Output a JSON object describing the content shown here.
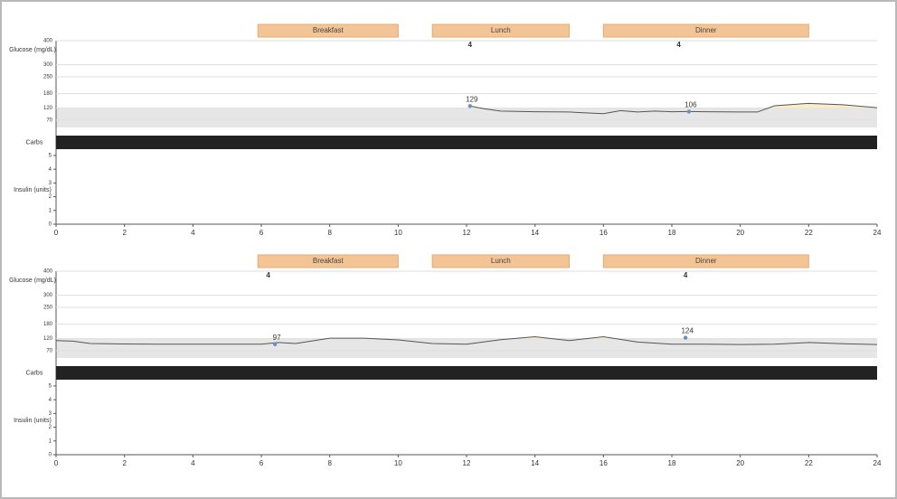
{
  "chart_data": [
    {
      "type": "line",
      "y_label": "Glucose (mg/dL)",
      "carbs_label": "Carbs",
      "insulin_label": "Insulin (units)",
      "x": [
        12.1,
        12.5,
        13,
        14,
        15,
        16,
        16.5,
        17,
        17.5,
        18,
        18.5,
        19,
        20,
        20.5,
        21,
        22,
        23,
        24
      ],
      "series": [
        {
          "name": "Glucose",
          "color": "#555555",
          "values": [
            129,
            118,
            108,
            105,
            104,
            97,
            110,
            104,
            108,
            105,
            106,
            105,
            104,
            104,
            130,
            140,
            134,
            122
          ]
        }
      ],
      "xlim": [
        0,
        24
      ],
      "xticks": [
        0,
        2,
        4,
        6,
        8,
        10,
        12,
        14,
        16,
        18,
        20,
        22,
        24
      ],
      "ylim": [
        40,
        400
      ],
      "yticks": [
        70,
        120,
        180,
        250,
        300,
        400
      ],
      "insulin_ylim": [
        0,
        5
      ],
      "insulin_yticks": [
        0,
        1,
        2,
        3,
        4,
        5
      ],
      "target_high": 120,
      "grid": true,
      "meals": [
        {
          "label": "Breakfast",
          "start": 5.9,
          "end": 10
        },
        {
          "label": "Lunch",
          "start": 11,
          "end": 15
        },
        {
          "label": "Dinner",
          "start": 16,
          "end": 22
        }
      ],
      "markers": [
        {
          "x": 12.1,
          "value": 129
        },
        {
          "x": 18.5,
          "value": 106
        }
      ],
      "insulin_doses": [
        {
          "x": 12.1,
          "value": 4
        },
        {
          "x": 18.2,
          "value": 4
        }
      ]
    },
    {
      "type": "line",
      "y_label": "Glucose (mg/dL)",
      "carbs_label": "Carbs",
      "insulin_label": "Insulin (units)",
      "x": [
        0,
        0.5,
        1,
        2,
        3,
        4,
        5,
        6,
        6.5,
        7,
        8,
        9,
        10,
        11,
        12,
        13,
        14,
        15,
        16,
        17,
        18,
        19,
        20,
        21,
        22,
        23,
        24
      ],
      "series": [
        {
          "name": "Glucose",
          "color": "#555555",
          "values": [
            112,
            110,
            100,
            98,
            97,
            97,
            97,
            97,
            104,
            100,
            122,
            122,
            115,
            100,
            97,
            116,
            128,
            112,
            128,
            106,
            97,
            97,
            96,
            97,
            104,
            99,
            96
          ]
        }
      ],
      "xlim": [
        0,
        24
      ],
      "xticks": [
        0,
        2,
        4,
        6,
        8,
        10,
        12,
        14,
        16,
        18,
        20,
        22,
        24
      ],
      "ylim": [
        40,
        400
      ],
      "yticks": [
        70,
        120,
        180,
        250,
        300,
        400
      ],
      "insulin_ylim": [
        0,
        5
      ],
      "insulin_yticks": [
        0,
        1,
        2,
        3,
        4,
        5
      ],
      "target_high": 120,
      "grid": true,
      "meals": [
        {
          "label": "Breakfast",
          "start": 5.9,
          "end": 10
        },
        {
          "label": "Lunch",
          "start": 11,
          "end": 15
        },
        {
          "label": "Dinner",
          "start": 16,
          "end": 22
        }
      ],
      "markers": [
        {
          "x": 6.4,
          "value": 97
        },
        {
          "x": 18.4,
          "value": 124
        }
      ],
      "insulin_doses": [
        {
          "x": 6.2,
          "value": 4
        },
        {
          "x": 18.4,
          "value": 4
        }
      ]
    }
  ]
}
